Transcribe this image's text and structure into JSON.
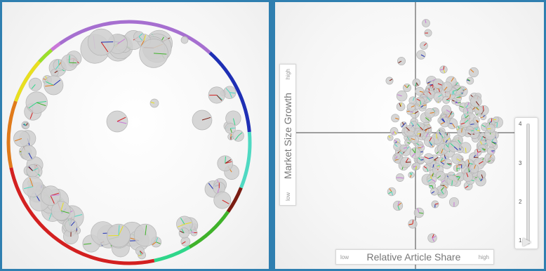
{
  "left_view": {
    "ring_segments": [
      {
        "color": "#c977d8",
        "from": -70,
        "to": -35
      },
      {
        "color": "#a66fd0",
        "from": -35,
        "to": 42
      },
      {
        "color": "#1e2fb4",
        "from": 42,
        "to": 85
      },
      {
        "color": "#4fd9c2",
        "from": 85,
        "to": 112
      },
      {
        "color": "#7a1c12",
        "from": 112,
        "to": 125
      },
      {
        "color": "#3fb22a",
        "from": 125,
        "to": 150
      },
      {
        "color": "#2fd68a",
        "from": 150,
        "to": 168
      },
      {
        "color": "#d32020",
        "from": 168,
        "to": 258
      },
      {
        "color": "#e07a1a",
        "from": 258,
        "to": 290
      },
      {
        "color": "#e8e020",
        "from": 290,
        "to": 312
      },
      {
        "color": "#9be02a",
        "from": 312,
        "to": 320
      }
    ]
  },
  "right_view": {
    "y_axis": {
      "label": "Market Size Growth",
      "low": "low",
      "high": "high"
    },
    "x_axis": {
      "label": "Relative Article Share",
      "low": "low",
      "high": "high"
    },
    "slider": {
      "ticks": [
        "4",
        "3",
        "2",
        "1"
      ],
      "value": 1
    }
  }
}
